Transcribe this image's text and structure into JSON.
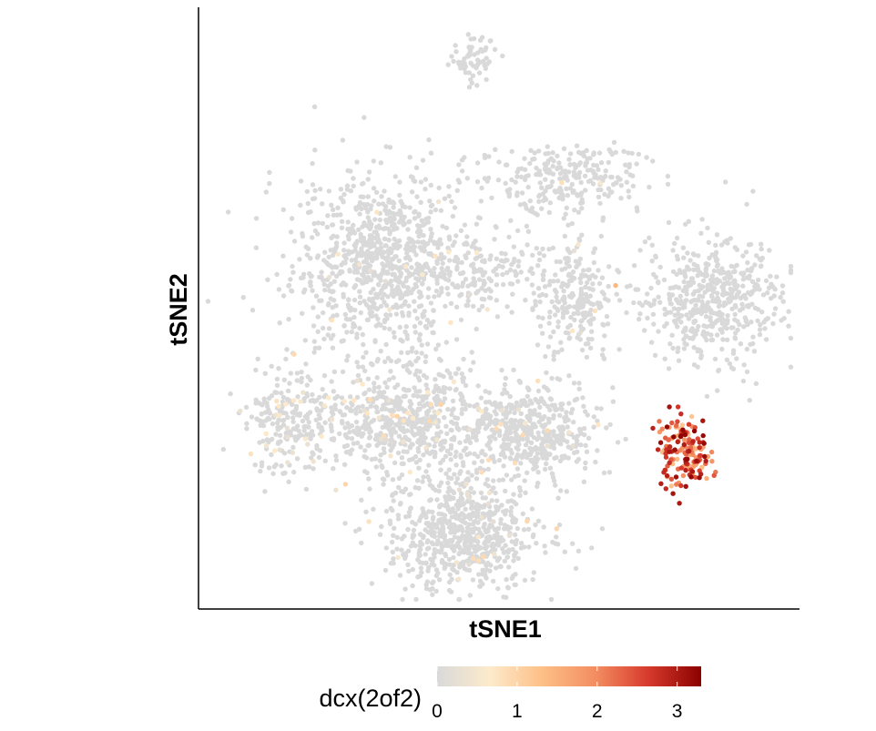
{
  "chart_data": {
    "type": "scatter",
    "title": "",
    "xlabel": "tSNE1",
    "ylabel": "tSNE2",
    "x_ticks_shown": false,
    "y_ticks_shown": false,
    "grid": false,
    "legend_placement": "bottom",
    "xlim": [
      0,
      100
    ],
    "ylim": [
      0,
      100
    ],
    "color_scale": {
      "variable": "dcx(2of2)",
      "min": 0,
      "max": 3.3,
      "ticks": [
        0,
        1,
        2,
        3
      ],
      "colors": [
        "#d9d9d9",
        "#fdeacb",
        "#fdbf86",
        "#f38d61",
        "#d73a2c",
        "#8b0000"
      ]
    },
    "clusters": [
      {
        "name": "top-small",
        "cx": 45.5,
        "cy": 92.0,
        "sx": 2.0,
        "sy": 2.0,
        "n": 60,
        "expr_frac": 0.0,
        "expr_max": 0.0
      },
      {
        "name": "upper-left-large",
        "cx": 30.5,
        "cy": 57.5,
        "sx": 7.5,
        "sy": 7.5,
        "n": 900,
        "expr_frac": 0.01,
        "expr_max": 0.8
      },
      {
        "name": "upper-left-arm",
        "cx": 48.0,
        "cy": 56.0,
        "sx": 4.5,
        "sy": 3.0,
        "n": 120,
        "expr_frac": 0.02,
        "expr_max": 1.0
      },
      {
        "name": "upper-right-arc",
        "cx": 60.0,
        "cy": 72.0,
        "sx": 7.0,
        "sy": 2.8,
        "n": 250,
        "expr_frac": 0.01,
        "expr_max": 1.0
      },
      {
        "name": "mid-stream",
        "cx": 63.0,
        "cy": 52.0,
        "sx": 4.0,
        "sy": 5.5,
        "n": 250,
        "expr_frac": 0.03,
        "expr_max": 1.5
      },
      {
        "name": "right-large",
        "cx": 86.0,
        "cy": 51.5,
        "sx": 5.5,
        "sy": 5.5,
        "n": 500,
        "expr_frac": 0.0,
        "expr_max": 0.0
      },
      {
        "name": "left-small",
        "cx": 14.5,
        "cy": 31.0,
        "sx": 3.5,
        "sy": 5.0,
        "n": 220,
        "expr_frac": 0.08,
        "expr_max": 0.8
      },
      {
        "name": "center-mid",
        "cx": 34.5,
        "cy": 31.0,
        "sx": 7.0,
        "sy": 4.5,
        "n": 600,
        "expr_frac": 0.06,
        "expr_max": 1.0
      },
      {
        "name": "center-right",
        "cx": 55.5,
        "cy": 29.0,
        "sx": 5.5,
        "sy": 3.8,
        "n": 450,
        "expr_frac": 0.03,
        "expr_max": 1.0
      },
      {
        "name": "bottom-large",
        "cx": 44.0,
        "cy": 12.5,
        "sx": 6.5,
        "sy": 5.0,
        "n": 700,
        "expr_frac": 0.03,
        "expr_max": 1.0
      },
      {
        "name": "dcx-high",
        "cx": 81.0,
        "cy": 26.0,
        "sx": 2.2,
        "sy": 3.0,
        "n": 160,
        "expr_frac": 1.0,
        "expr_min": 1.2,
        "expr_max": 3.3
      }
    ]
  }
}
